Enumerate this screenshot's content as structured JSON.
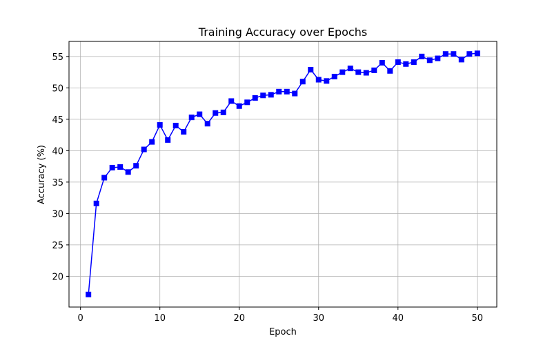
{
  "chart_data": {
    "type": "line",
    "title": "Training Accuracy over Epochs",
    "xlabel": "Epoch",
    "ylabel": "Accuracy (%)",
    "xlim": [
      -1.45,
      52.45
    ],
    "ylim": [
      15.1,
      57.4
    ],
    "xticks": [
      0,
      10,
      20,
      30,
      40,
      50
    ],
    "yticks": [
      20,
      25,
      30,
      35,
      40,
      45,
      50,
      55
    ],
    "grid": true,
    "marker": "square",
    "colors": {
      "series": "#0000ff"
    },
    "series": [
      {
        "x": [
          1,
          2,
          3,
          4,
          5,
          6,
          7,
          8,
          9,
          10,
          11,
          12,
          13,
          14,
          15,
          16,
          17,
          18,
          19,
          20,
          21,
          22,
          23,
          24,
          25,
          26,
          27,
          28,
          29,
          30,
          31,
          32,
          33,
          34,
          35,
          36,
          37,
          38,
          39,
          40,
          41,
          42,
          43,
          44,
          45,
          46,
          47,
          48,
          49,
          50
        ],
        "values": [
          17.1,
          31.6,
          35.7,
          37.3,
          37.4,
          36.6,
          37.6,
          40.2,
          41.4,
          44.1,
          41.7,
          44.0,
          43.0,
          45.3,
          45.8,
          44.3,
          46.0,
          46.1,
          47.9,
          47.1,
          47.7,
          48.4,
          48.8,
          48.9,
          49.4,
          49.4,
          49.1,
          51.0,
          52.9,
          51.3,
          51.1,
          51.8,
          52.5,
          53.1,
          52.5,
          52.4,
          52.8,
          54.0,
          52.7,
          54.1,
          53.8,
          54.1,
          55.0,
          54.4,
          54.7,
          55.4,
          55.4,
          54.5,
          55.4,
          55.5
        ]
      }
    ]
  }
}
